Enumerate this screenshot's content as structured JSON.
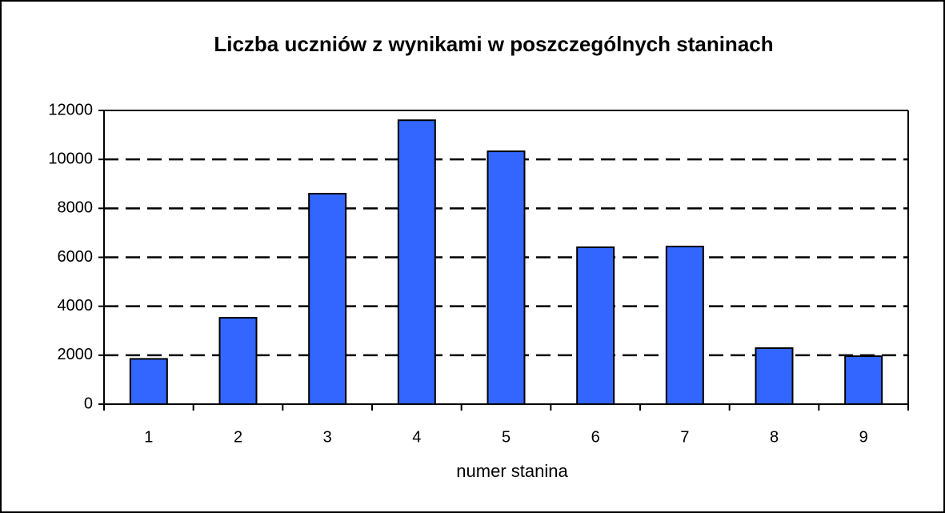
{
  "chart_data": {
    "type": "bar",
    "title": "Liczba uczniów z wynikami w poszczególnych staninach",
    "x_label": "numer stanina",
    "categories": [
      "1",
      "2",
      "3",
      "4",
      "5",
      "6",
      "7",
      "8",
      "9"
    ],
    "values": [
      1850,
      3530,
      8600,
      11600,
      10330,
      6410,
      6440,
      2290,
      1960
    ],
    "color": "#3366ff",
    "ylim": [
      0,
      12000
    ],
    "yticks": [
      0,
      2000,
      4000,
      6000,
      8000,
      10000,
      12000
    ],
    "grid": true
  }
}
